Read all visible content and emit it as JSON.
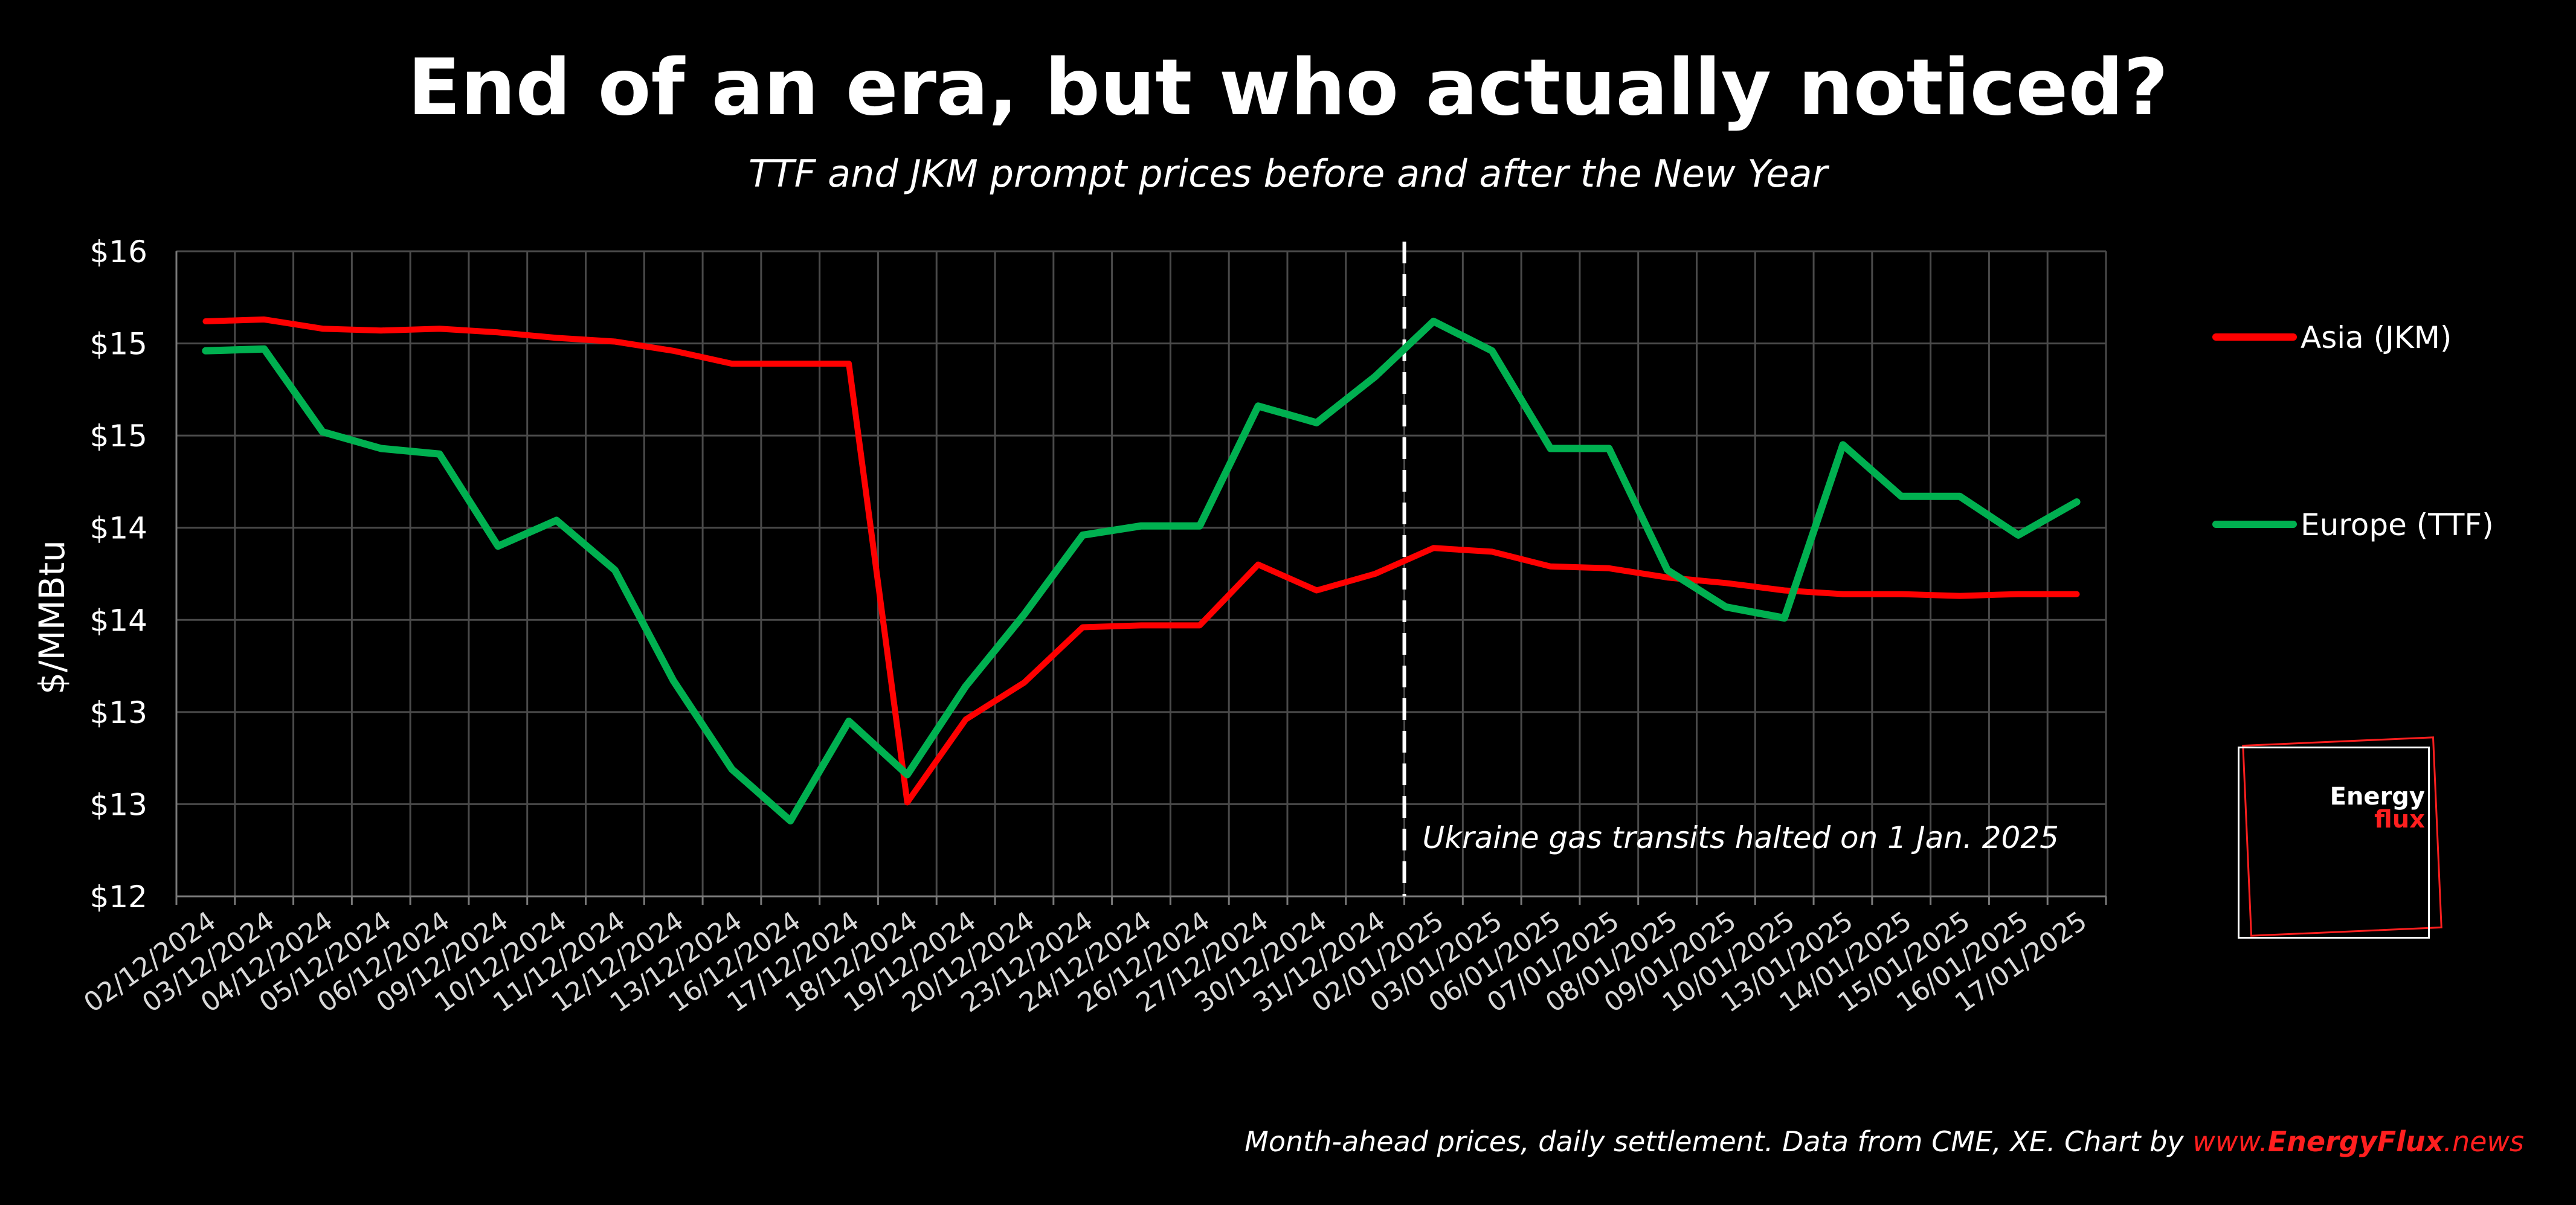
{
  "chart_data": {
    "type": "line",
    "title": "End of an era, but who actually noticed?",
    "subtitle": "TTF and JKM prompt prices before and after the New Year",
    "ylabel": "$/MMBtu",
    "xlabel": "",
    "ylim": [
      12,
      15.5
    ],
    "yticks": [
      12,
      12.5,
      13,
      13.5,
      14,
      14.5,
      15,
      15.5
    ],
    "ytick_labels": [
      "$12",
      "$13",
      "$13",
      "$14",
      "$14",
      "$15",
      "$15",
      "$16"
    ],
    "categories": [
      "02/12/2024",
      "03/12/2024",
      "04/12/2024",
      "05/12/2024",
      "06/12/2024",
      "09/12/2024",
      "10/12/2024",
      "11/12/2024",
      "12/12/2024",
      "13/12/2024",
      "16/12/2024",
      "17/12/2024",
      "18/12/2024",
      "19/12/2024",
      "20/12/2024",
      "23/12/2024",
      "24/12/2024",
      "26/12/2024",
      "27/12/2024",
      "30/12/2024",
      "31/12/2024",
      "02/01/2025",
      "03/01/2025",
      "06/01/2025",
      "07/01/2025",
      "08/01/2025",
      "09/01/2025",
      "10/01/2025",
      "13/01/2025",
      "14/01/2025",
      "15/01/2025",
      "16/01/2025",
      "17/01/2025"
    ],
    "series": [
      {
        "name": "Asia (JKM)",
        "color": "#ff0000",
        "values": [
          15.12,
          15.13,
          15.08,
          15.07,
          15.08,
          15.06,
          15.03,
          15.01,
          14.96,
          14.89,
          14.89,
          14.89,
          12.51,
          12.96,
          13.16,
          13.46,
          13.47,
          13.47,
          13.8,
          13.66,
          13.75,
          13.89,
          13.87,
          13.79,
          13.78,
          13.73,
          13.7,
          13.66,
          13.64,
          13.64,
          13.63,
          13.64,
          13.64
        ]
      },
      {
        "name": "Europe (TTF)",
        "color": "#00b050",
        "values": [
          14.96,
          14.97,
          14.52,
          14.43,
          14.4,
          13.9,
          14.04,
          13.77,
          13.17,
          12.69,
          12.41,
          12.95,
          12.66,
          13.14,
          13.53,
          13.96,
          14.01,
          14.01,
          14.66,
          14.57,
          14.82,
          15.12,
          14.96,
          14.43,
          14.43,
          13.77,
          13.57,
          13.51,
          14.45,
          14.17,
          14.17,
          13.96,
          14.14
        ]
      }
    ],
    "annotation": "Ukraine gas transits halted on 1 Jan. 2025",
    "vline_after": "31/12/2024",
    "grid": true,
    "legend_position": "right"
  },
  "footer": {
    "text": "Month-ahead prices, daily settlement. Data from CME, XE. Chart by ",
    "link_prefix": "www.",
    "link_brand": "EnergyFlux",
    "link_suffix": ".news"
  },
  "logo": {
    "word1": "Energy",
    "word2": "flux"
  }
}
